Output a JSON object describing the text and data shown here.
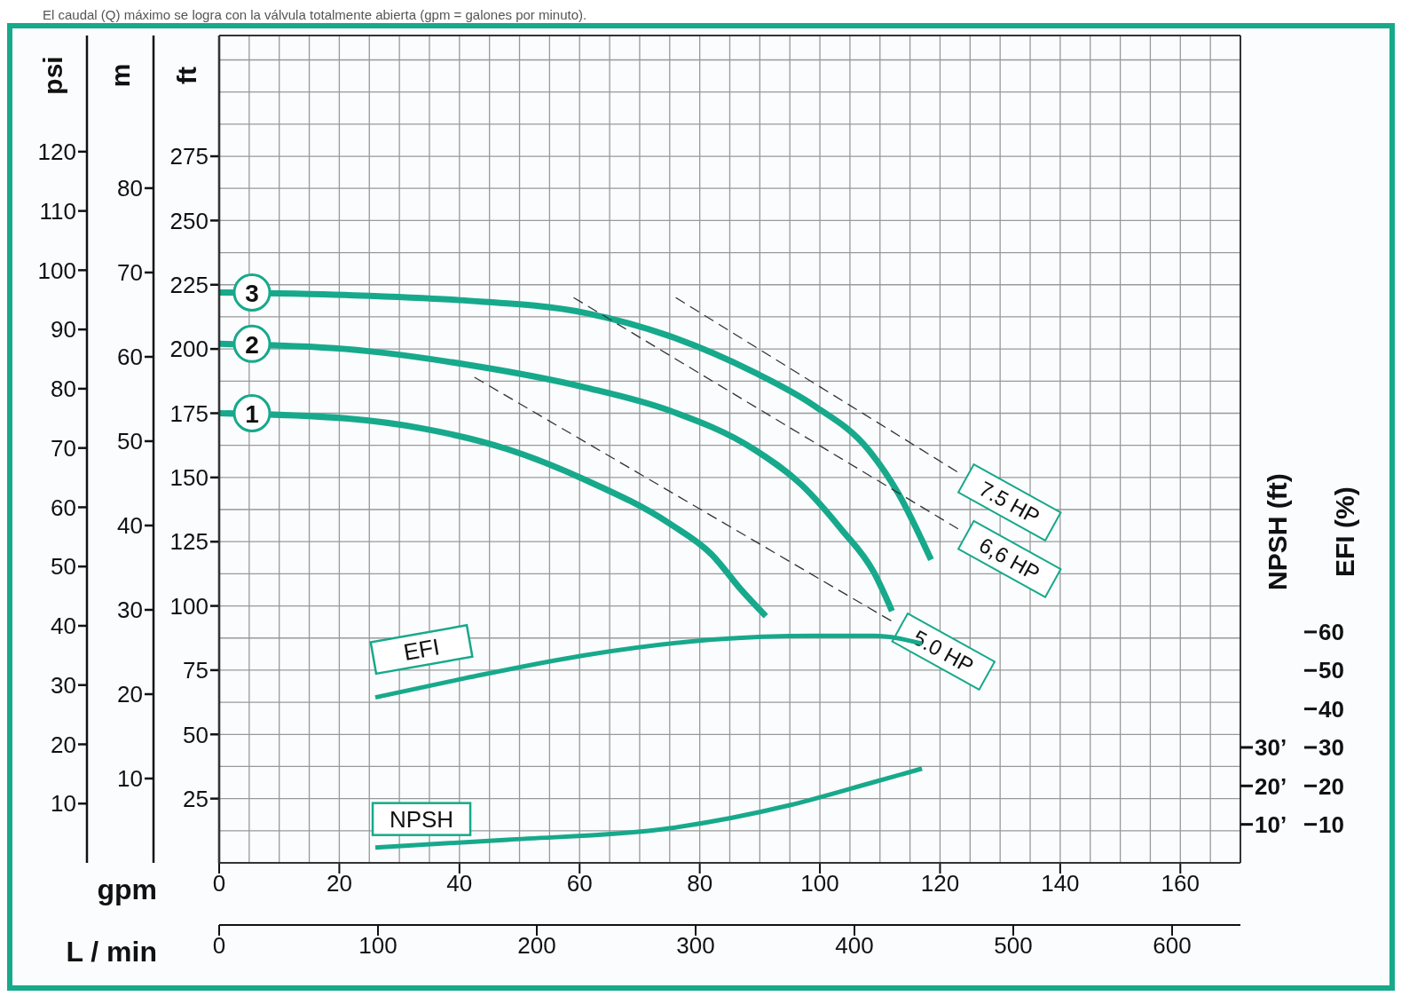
{
  "chart_data": [
    {
      "type": "line",
      "annotations": [
        "El caudal (Q) máximo se logra con la válvula totalmente abierta (gpm = galones por minuto)."
      ],
      "xlabel": "gpm",
      "xlim": [
        0,
        170
      ],
      "xticks": [
        0,
        20,
        40,
        60,
        80,
        100,
        120,
        140,
        160
      ],
      "x2label": "L / min",
      "x2lim": [
        0,
        643
      ],
      "x2ticks": [
        0,
        100,
        200,
        300,
        400,
        500,
        600
      ],
      "ylabel": "ft",
      "ylim": [
        0,
        322
      ],
      "yticks": [
        25,
        50,
        75,
        100,
        125,
        150,
        175,
        200,
        225,
        250,
        275
      ],
      "y2label": "psi",
      "y2lim": [
        0,
        139.6
      ],
      "y2ticks": [
        10,
        20,
        30,
        40,
        50,
        60,
        70,
        80,
        90,
        100,
        110,
        120
      ],
      "y3label": "m",
      "y3lim": [
        0,
        98.1
      ],
      "y3ticks": [
        10,
        20,
        30,
        40,
        50,
        60,
        70,
        80
      ],
      "grid": true,
      "marker": "none",
      "series": [
        {
          "name": "3",
          "color": "#17a98b",
          "x": [
            0,
            21,
            40,
            61,
            75,
            89,
            99,
            108,
            113,
            118.5
          ],
          "values": [
            222,
            221,
            219,
            214,
            205,
            191,
            178,
            161,
            144,
            118
          ]
        },
        {
          "name": "2",
          "color": "#17a98b",
          "x": [
            0,
            21,
            41,
            61,
            75,
            89,
            97,
            103.5,
            109,
            112
          ],
          "values": [
            202,
            200,
            194,
            185,
            176,
            161,
            147,
            130,
            113,
            98
          ]
        },
        {
          "name": "1",
          "color": "#17a98b",
          "x": [
            0,
            21,
            34,
            48,
            61,
            75,
            82,
            87,
            91
          ],
          "values": [
            175,
            173,
            169,
            161,
            149,
            132,
            120,
            106,
            96
          ]
        },
        {
          "name": "7.5 HP",
          "color": "#333333",
          "line_style": "dashed",
          "x": [
            76,
            123
          ],
          "values": [
            220,
            152
          ]
        },
        {
          "name": "6,6 HP",
          "color": "#333333",
          "line_style": "dashed",
          "x": [
            59,
            123
          ],
          "values": [
            220,
            130
          ]
        },
        {
          "name": "5.0 HP",
          "color": "#333333",
          "line_style": "dashed",
          "x": [
            42.5,
            112
          ],
          "values": [
            189,
            94
          ]
        }
      ]
    },
    {
      "type": "line",
      "xlim": [
        0,
        170
      ],
      "tick_labels": "y",
      "marker": "none",
      "ylabel": "EFI (%)",
      "ylim": [
        0,
        215
      ],
      "yticks": [
        10,
        20,
        30,
        40,
        50,
        60
      ],
      "y2label": "NPSH (ft)",
      "y2lim": [
        0,
        215
      ],
      "y2ticks": [
        {
          "value": 10,
          "label": "10’"
        },
        {
          "value": 20,
          "label": "20’"
        },
        {
          "value": 30,
          "label": "30’"
        }
      ],
      "series": [
        {
          "name": "EFI",
          "color": "#17a98b",
          "x": [
            26,
            41,
            61,
            82,
            99,
            109,
            117
          ],
          "values": [
            43,
            48,
            54,
            58,
            59,
            59,
            57
          ]
        },
        {
          "name": "NPSH",
          "color": "#17a98b",
          "axis": "y2",
          "x": [
            26,
            48,
            75,
            95,
            109,
            117
          ],
          "values": [
            4,
            6,
            9,
            15,
            21,
            24.5
          ]
        }
      ]
    }
  ]
}
